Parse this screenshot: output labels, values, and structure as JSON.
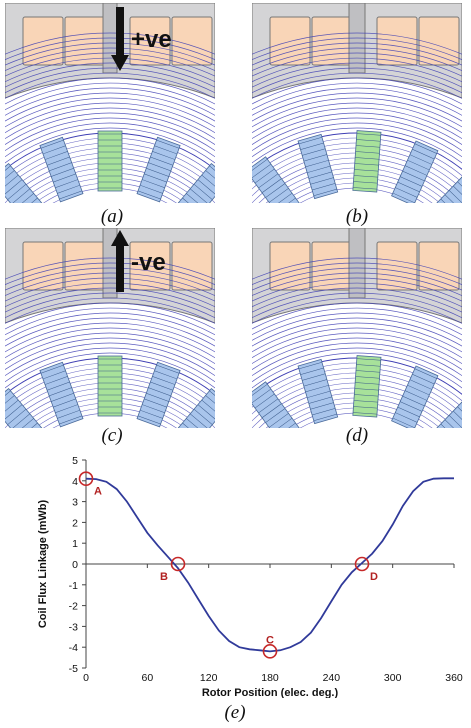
{
  "figure": {
    "captions": [
      "(a)",
      "(b)",
      "(c)",
      "(d)",
      "(e)"
    ],
    "panel_a_label": "+ve",
    "panel_c_label": "-ve",
    "colors": {
      "stator": "#f9d5b7",
      "stator_frame": "#d4d4d6",
      "coil_blue": "#a9c5ec",
      "coil_green": "#a7e19a",
      "flux_line": "#3f3fb4",
      "marker": "#c62828",
      "curve": "#303a9a"
    }
  },
  "chart_data": {
    "type": "line",
    "title": "",
    "xlabel": "Rotor Position (elec. deg.)",
    "ylabel": "Coil Flux Linkage (mWb)",
    "xlim": [
      0,
      360
    ],
    "ylim": [
      -5,
      5
    ],
    "xticks": [
      0,
      60,
      120,
      180,
      240,
      300,
      360
    ],
    "yticks": [
      5,
      4,
      3,
      2,
      1,
      0,
      -1,
      -2,
      -3,
      -4,
      -5
    ],
    "grid": false,
    "series": [
      {
        "x": [
          0,
          10,
          20,
          30,
          40,
          50,
          60,
          70,
          80,
          90,
          100,
          110,
          120,
          130,
          140,
          150,
          160,
          170,
          180,
          190,
          200,
          210,
          220,
          230,
          240,
          250,
          260,
          270,
          280,
          290,
          300,
          310,
          320,
          330,
          340,
          350,
          360
        ],
        "y": [
          4.1,
          4.08,
          3.95,
          3.6,
          3.0,
          2.25,
          1.5,
          0.9,
          0.35,
          -0.2,
          -0.9,
          -1.7,
          -2.5,
          -3.2,
          -3.7,
          -4.0,
          -4.1,
          -4.15,
          -4.2,
          -4.15,
          -4.0,
          -3.75,
          -3.3,
          -2.6,
          -1.8,
          -1.0,
          -0.4,
          0.05,
          0.5,
          1.1,
          1.9,
          2.8,
          3.5,
          3.95,
          4.1,
          4.12,
          4.12
        ]
      }
    ],
    "markers": [
      {
        "label": "A",
        "x": 0,
        "y": 4.1
      },
      {
        "label": "B",
        "x": 90,
        "y": 0
      },
      {
        "label": "C",
        "x": 180,
        "y": -4.2
      },
      {
        "label": "D",
        "x": 270,
        "y": 0
      }
    ]
  }
}
